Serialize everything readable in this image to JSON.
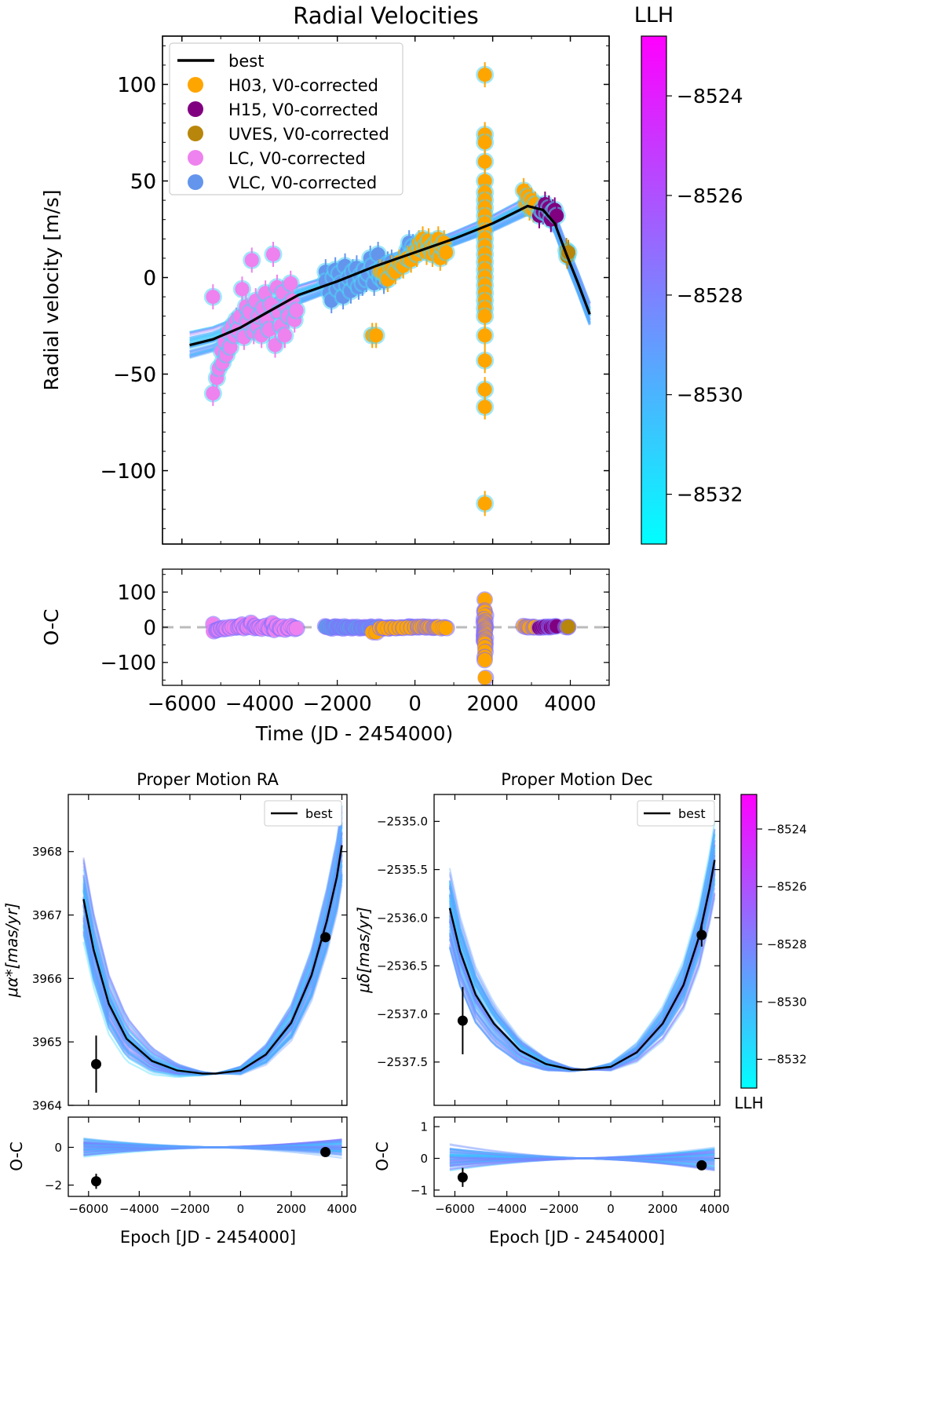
{
  "colors": {
    "best": "#000000",
    "H03": "#ffa500",
    "H15": "#800080",
    "UVES": "#b8860b",
    "LC": "#ee82ee",
    "VLC": "#6495ed",
    "cmap_low": "#00ffff",
    "cmap_high": "#ff00ff",
    "zero_line": "#bbbbbb"
  },
  "chart_data": [
    {
      "id": "rv",
      "type": "scatter",
      "title": "Radial Velocities",
      "xlabel": "Time (JD - 2454000)",
      "ylabel": "Radial velocity [m/s]",
      "xlim": [
        -6500,
        5000
      ],
      "ylim": [
        -138,
        125
      ],
      "xticks": [
        -6000,
        -4000,
        -2000,
        0,
        2000,
        4000
      ],
      "yticks": [
        -100,
        -50,
        0,
        50,
        100
      ],
      "ytick_labels": [
        "−100",
        "−50",
        "0",
        "50",
        "100"
      ],
      "legend": [
        "best",
        "H03, V0-corrected",
        "H15, V0-corrected",
        "UVES, V0-corrected",
        "LC, V0-corrected",
        "VLC, V0-corrected"
      ],
      "legend_position": "top-left",
      "best_fit": {
        "x": [
          -5800,
          -5200,
          -4500,
          -3800,
          -3000,
          -2000,
          -1000,
          0,
          1000,
          2000,
          2500,
          2900,
          3300,
          3600,
          3900,
          4200,
          4500
        ],
        "y": [
          -35,
          -32,
          -26,
          -18,
          -9,
          -2,
          6,
          13,
          20,
          28,
          33,
          37,
          35,
          28,
          12,
          -3,
          -19
        ]
      },
      "series": [
        {
          "name": "LC",
          "points": [
            [
              -5200,
              -10
            ],
            [
              -5200,
              -60
            ],
            [
              -5100,
              -52
            ],
            [
              -5050,
              -47
            ],
            [
              -4980,
              -38
            ],
            [
              -4950,
              -44
            ],
            [
              -4900,
              -33
            ],
            [
              -4850,
              -40
            ],
            [
              -4800,
              -28
            ],
            [
              -4750,
              -36
            ],
            [
              -4700,
              -25
            ],
            [
              -4650,
              -30
            ],
            [
              -4600,
              -22
            ],
            [
              -4550,
              -27
            ],
            [
              -4500,
              -20
            ],
            [
              -4450,
              -6
            ],
            [
              -4400,
              -31
            ],
            [
              -4350,
              -15
            ],
            [
              -4300,
              -23
            ],
            [
              -4250,
              -18
            ],
            [
              -4200,
              9
            ],
            [
              -4150,
              -28
            ],
            [
              -4100,
              -12
            ],
            [
              -4050,
              -25
            ],
            [
              -4000,
              -20
            ],
            [
              -3950,
              -30
            ],
            [
              -3900,
              -16
            ],
            [
              -3850,
              -8
            ],
            [
              -3800,
              -22
            ],
            [
              -3750,
              -27
            ],
            [
              -3700,
              -14
            ],
            [
              -3650,
              12
            ],
            [
              -3600,
              -35
            ],
            [
              -3550,
              -5
            ],
            [
              -3500,
              -18
            ],
            [
              -3450,
              -25
            ],
            [
              -3400,
              -8
            ],
            [
              -3350,
              -30
            ],
            [
              -3300,
              -15
            ],
            [
              -3250,
              -20
            ],
            [
              -3200,
              -3
            ],
            [
              -3150,
              -12
            ],
            [
              -3100,
              -22
            ],
            [
              -3050,
              -17
            ]
          ]
        },
        {
          "name": "VLC",
          "points": [
            [
              -2300,
              3
            ],
            [
              -2300,
              -2
            ],
            [
              -2200,
              -8
            ],
            [
              -2150,
              -12
            ],
            [
              -2100,
              0
            ],
            [
              -2050,
              4
            ],
            [
              -2000,
              -6
            ],
            [
              -1950,
              2
            ],
            [
              -1900,
              -3
            ],
            [
              -1850,
              -10
            ],
            [
              -1800,
              6
            ],
            [
              -1750,
              -4
            ],
            [
              -1700,
              0
            ],
            [
              -1650,
              -7
            ],
            [
              -1600,
              3
            ],
            [
              -1550,
              -2
            ],
            [
              -1500,
              5
            ],
            [
              -1450,
              -5
            ],
            [
              -1400,
              1
            ],
            [
              -1350,
              -3
            ],
            [
              -1300,
              4
            ],
            [
              -1250,
              -1
            ],
            [
              -1200,
              2
            ],
            [
              -1150,
              10
            ],
            [
              -1100,
              6
            ],
            [
              -1050,
              -3
            ],
            [
              -1000,
              3
            ],
            [
              -950,
              12
            ],
            [
              -900,
              0
            ],
            [
              -850,
              5
            ],
            [
              -800,
              -2
            ],
            [
              -750,
              4
            ],
            [
              -700,
              7
            ],
            [
              -650,
              2
            ],
            [
              -600,
              8
            ],
            [
              -500,
              5
            ],
            [
              -400,
              6
            ],
            [
              -300,
              10
            ],
            [
              -200,
              14
            ],
            [
              -150,
              18
            ],
            [
              -100,
              12
            ],
            [
              -50,
              16
            ]
          ]
        },
        {
          "name": "H03",
          "points": [
            [
              -1100,
              -30
            ],
            [
              -1000,
              -30
            ],
            [
              -900,
              3
            ],
            [
              -800,
              2
            ],
            [
              -700,
              -1
            ],
            [
              -600,
              5
            ],
            [
              -500,
              3
            ],
            [
              -400,
              8
            ],
            [
              -300,
              6
            ],
            [
              -200,
              10
            ],
            [
              -100,
              9
            ],
            [
              0,
              14
            ],
            [
              50,
              12
            ],
            [
              100,
              18
            ],
            [
              150,
              15
            ],
            [
              200,
              20
            ],
            [
              250,
              16
            ],
            [
              300,
              13
            ],
            [
              350,
              19
            ],
            [
              400,
              15
            ],
            [
              450,
              12
            ],
            [
              500,
              17
            ],
            [
              550,
              14
            ],
            [
              600,
              20
            ],
            [
              650,
              10
            ],
            [
              700,
              16
            ],
            [
              750,
              18
            ],
            [
              800,
              13
            ],
            [
              1800,
              105
            ],
            [
              1800,
              74
            ],
            [
              1800,
              70
            ],
            [
              1800,
              60
            ],
            [
              1800,
              50
            ],
            [
              1800,
              44
            ],
            [
              1800,
              40
            ],
            [
              1800,
              36
            ],
            [
              1800,
              32
            ],
            [
              1800,
              28
            ],
            [
              1800,
              24
            ],
            [
              1800,
              20
            ],
            [
              1800,
              16
            ],
            [
              1800,
              12
            ],
            [
              1800,
              8
            ],
            [
              1800,
              4
            ],
            [
              1800,
              0
            ],
            [
              1800,
              -4
            ],
            [
              1800,
              -8
            ],
            [
              1800,
              -12
            ],
            [
              1800,
              -16
            ],
            [
              1800,
              -20
            ],
            [
              1800,
              -30
            ],
            [
              1800,
              -43
            ],
            [
              1800,
              -58
            ],
            [
              1800,
              -67
            ],
            [
              1800,
              -117
            ],
            [
              2800,
              45
            ],
            [
              2850,
              38
            ],
            [
              2900,
              42
            ],
            [
              2950,
              36
            ],
            [
              3000,
              40
            ],
            [
              3050,
              35
            ],
            [
              3100,
              38
            ]
          ]
        },
        {
          "name": "H15",
          "points": [
            [
              3200,
              32
            ],
            [
              3250,
              35
            ],
            [
              3300,
              34
            ],
            [
              3350,
              38
            ],
            [
              3400,
              33
            ],
            [
              3450,
              36
            ],
            [
              3500,
              30
            ],
            [
              3550,
              34
            ],
            [
              3600,
              35
            ],
            [
              3650,
              32
            ]
          ]
        },
        {
          "name": "UVES",
          "points": [
            [
              3900,
              14
            ],
            [
              3920,
              11
            ],
            [
              3950,
              13
            ]
          ]
        }
      ]
    },
    {
      "id": "rv_oc",
      "type": "scatter",
      "xlabel": "Time (JD - 2454000)",
      "ylabel": "O-C",
      "xlim": [
        -6500,
        5000
      ],
      "ylim": [
        -165,
        165
      ],
      "xticks": [
        -6000,
        -4000,
        -2000,
        0,
        2000,
        4000
      ],
      "xtick_labels": [
        "−6000",
        "−4000",
        "−2000",
        "0",
        "2000",
        "4000"
      ],
      "yticks": [
        -100,
        0,
        100
      ],
      "ytick_labels": [
        "−100",
        "0",
        "100"
      ],
      "zero_line": true
    },
    {
      "id": "pm_ra",
      "type": "line",
      "title": "Proper Motion RA",
      "xlabel": "Epoch [JD - 2454000]",
      "ylabel": "μα*[mas/yr]",
      "xlim": [
        -6800,
        4200
      ],
      "ylim": [
        3964.0,
        3968.9
      ],
      "xticks": [
        -6000,
        -4000,
        -2000,
        0,
        2000,
        4000
      ],
      "yticks": [
        3964,
        3965,
        3966,
        3967,
        3968
      ],
      "legend": [
        "best"
      ],
      "legend_position": "top-right",
      "best_fit": {
        "x": [
          -6200,
          -5800,
          -5200,
          -4500,
          -3500,
          -2500,
          -1500,
          -1000,
          0,
          1000,
          2000,
          2800,
          3400,
          3800,
          4000
        ],
        "y": [
          3967.25,
          3966.45,
          3965.6,
          3965.05,
          3964.7,
          3964.55,
          3964.5,
          3964.5,
          3964.55,
          3964.8,
          3965.3,
          3966.05,
          3966.9,
          3967.6,
          3968.1
        ]
      },
      "data_points": [
        {
          "x": -5700,
          "y": 3964.65,
          "err": 0.45
        },
        {
          "x": 3350,
          "y": 3966.65,
          "err": 0.07
        }
      ]
    },
    {
      "id": "pm_ra_oc",
      "type": "line",
      "xlabel": "Epoch [JD - 2454000]",
      "ylabel": "O-C",
      "xlim": [
        -6800,
        4200
      ],
      "ylim": [
        -2.6,
        1.6
      ],
      "xticks": [
        -6000,
        -4000,
        -2000,
        0,
        2000,
        4000
      ],
      "xtick_labels": [
        "−6000",
        "−4000",
        "−2000",
        "0",
        "2000",
        "4000"
      ],
      "yticks": [
        -2,
        0
      ],
      "ytick_labels": [
        "−2",
        "0"
      ],
      "data_points": [
        {
          "x": -5700,
          "y": -1.8,
          "err": 0.4
        },
        {
          "x": 3350,
          "y": -0.25,
          "err": 0.07
        }
      ]
    },
    {
      "id": "pm_dec",
      "type": "line",
      "title": "Proper Motion Dec",
      "xlabel": "Epoch [JD - 2454000]",
      "ylabel": "μδ[mas/yr]",
      "xlim": [
        -6800,
        4200
      ],
      "ylim": [
        -2537.95,
        -2534.72
      ],
      "xticks": [
        -6000,
        -4000,
        -2000,
        0,
        2000,
        4000
      ],
      "yticks": [
        -2535.0,
        -2535.5,
        -2536.0,
        -2536.5,
        -2537.0,
        -2537.5
      ],
      "ytick_labels": [
        "−2535.0",
        "−2535.5",
        "−2536.0",
        "−2536.5",
        "−2537.0",
        "−2537.5"
      ],
      "legend": [
        "best"
      ],
      "legend_position": "top-right",
      "best_fit": {
        "x": [
          -6200,
          -5800,
          -5200,
          -4500,
          -3500,
          -2500,
          -1500,
          -1000,
          0,
          1000,
          2000,
          2800,
          3400,
          3800,
          4000
        ],
        "y": [
          -2535.9,
          -2536.35,
          -2536.8,
          -2537.1,
          -2537.38,
          -2537.52,
          -2537.58,
          -2537.58,
          -2537.55,
          -2537.4,
          -2537.1,
          -2536.7,
          -2536.2,
          -2535.7,
          -2535.4
        ]
      },
      "data_points": [
        {
          "x": -5700,
          "y": -2537.07,
          "err": 0.35
        },
        {
          "x": 3500,
          "y": -2536.18,
          "err": 0.12
        }
      ]
    },
    {
      "id": "pm_dec_oc",
      "type": "line",
      "xlabel": "Epoch [JD - 2454000]",
      "ylabel": "O-C",
      "xlim": [
        -6800,
        4200
      ],
      "ylim": [
        -1.2,
        1.3
      ],
      "xticks": [
        -6000,
        -4000,
        -2000,
        0,
        2000,
        4000
      ],
      "xtick_labels": [
        "−6000",
        "−4000",
        "−2000",
        "0",
        "2000",
        "4000"
      ],
      "yticks": [
        -1,
        0,
        1
      ],
      "ytick_labels": [
        "−1",
        "0",
        "1"
      ],
      "data_points": [
        {
          "x": -5700,
          "y": -0.6,
          "err": 0.3
        },
        {
          "x": 3500,
          "y": -0.22,
          "err": 0.05
        }
      ]
    }
  ],
  "colorbars": [
    {
      "id": "cb_top",
      "label": "LLH",
      "range": [
        -8533,
        -8522.8
      ],
      "ticks": [
        -8524,
        -8526,
        -8528,
        -8530,
        -8532
      ],
      "tick_labels": [
        "−8524",
        "−8526",
        "−8528",
        "−8530",
        "−8532"
      ]
    },
    {
      "id": "cb_bottom",
      "label": "LLH",
      "range": [
        -8533,
        -8522.8
      ],
      "ticks": [
        -8524,
        -8526,
        -8528,
        -8530,
        -8532
      ],
      "tick_labels": [
        "−8524",
        "−8526",
        "−8528",
        "−8530",
        "−8532"
      ]
    }
  ]
}
